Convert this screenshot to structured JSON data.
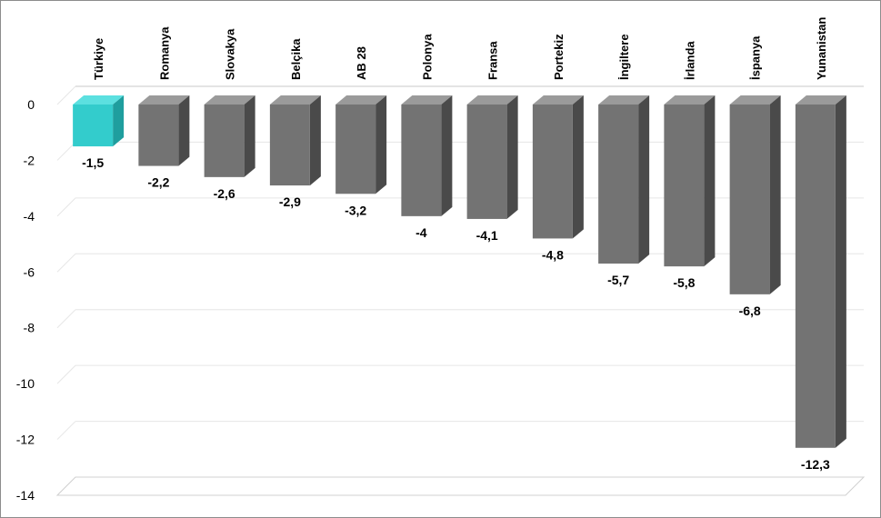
{
  "chart_data": {
    "type": "bar",
    "categories": [
      "Türkiye",
      "Romanya",
      "Slovakya",
      "Belçika",
      "AB 28",
      "Polonya",
      "Fransa",
      "Portekiz",
      "İngiltere",
      "İrlanda",
      "İspanya",
      "Yunanistan"
    ],
    "values": [
      -1.5,
      -2.2,
      -2.6,
      -2.9,
      -3.2,
      -4,
      -4.1,
      -4.8,
      -5.7,
      -5.8,
      -6.8,
      -12.3
    ],
    "value_labels": [
      "-1,5",
      "-2,2",
      "-2,6",
      "-2,9",
      "-3,2",
      "-4",
      "-4,1",
      "-4,8",
      "-5,7",
      "-5,8",
      "-6,8",
      "-12,3"
    ],
    "highlight_index": 0,
    "ylim": [
      -14,
      0
    ],
    "yticks": [
      0,
      -2,
      -4,
      -6,
      -8,
      -10,
      -12,
      -14
    ],
    "ytick_labels": [
      "0",
      "-2",
      "-4",
      "-6",
      "-8",
      "-10",
      "-12",
      "-14"
    ],
    "grid": true,
    "category_label_position": "top, rotated vertical",
    "style": "3d-column",
    "colors": {
      "bar_front": "#737373",
      "bar_side": "#4a4a4a",
      "bar_top": "#9a9a9a",
      "highlight_front": "#33cccc",
      "highlight_side": "#1f9e9e",
      "highlight_top": "#5ce0e0",
      "grid": "#e6e6e6",
      "frame": "#8c8c8c"
    }
  }
}
